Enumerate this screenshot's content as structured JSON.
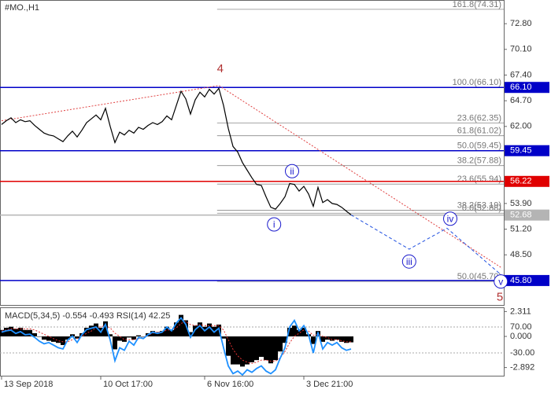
{
  "chart_data": [
    {
      "type": "line",
      "title": "#MO.,H1",
      "xlim": [
        -0.33,
        106.33
      ],
      "xticks": [
        {
          "value": 0,
          "label": "13 Sep 2018"
        },
        {
          "value": 21,
          "label": "10 Oct 17:00"
        },
        {
          "value": 43,
          "label": "6 Nov 16:00"
        },
        {
          "value": 64,
          "label": "3 Dec 21:00"
        }
      ],
      "ylim": [
        43.23,
        75.29
      ],
      "yticks": [
        {
          "value": 72.8,
          "label": "72.80"
        },
        {
          "value": 70.1,
          "label": "70.10"
        },
        {
          "value": 67.4,
          "label": "67.40"
        },
        {
          "value": 64.7,
          "label": "64.70"
        },
        {
          "value": 62,
          "label": "62.00"
        },
        {
          "value": 53.9,
          "label": "53.90"
        },
        {
          "value": 51.2,
          "label": "51.20"
        },
        {
          "value": 48.5,
          "label": "48.50"
        }
      ],
      "series": [
        {
          "color": "#000000",
          "values": [
            62.2,
            62.6,
            62.9,
            62.4,
            62.7,
            62.5,
            62.6,
            62.1,
            61.7,
            61.3,
            61.1,
            61.0,
            60.7,
            60.4,
            61.0,
            61.5,
            60.9,
            61.6,
            62.4,
            62.8,
            63.2,
            62.7,
            63.9,
            62.0,
            60.3,
            61.4,
            61.1,
            61.6,
            61.3,
            61.9,
            61.7,
            62.1,
            62.4,
            62.2,
            62.5,
            63.1,
            62.7,
            64.2,
            65.7,
            64.9,
            63.3,
            64.8,
            65.6,
            65.1,
            65.9,
            65.4,
            66.0,
            64.2,
            61.8,
            59.9,
            59.3,
            58.2,
            57.4,
            56.6,
            55.9,
            55.8,
            54.6,
            53.5,
            53.3,
            53.9,
            54.6,
            56.0,
            55.9,
            55.2,
            55.7,
            54.9,
            53.6,
            55.6,
            54.0,
            54.3,
            53.9,
            53.8,
            53.5,
            53.1,
            52.7
          ]
        }
      ],
      "levels": [
        {
          "value": 66.1,
          "label": "66.10",
          "color": "#0000c8"
        },
        {
          "value": 59.45,
          "label": "59.45",
          "color": "#0000c8"
        },
        {
          "value": 56.22,
          "label": "56.22",
          "color": "#e00000"
        },
        {
          "value": 52.68,
          "label": "52.68",
          "color": "#b4b4b4"
        },
        {
          "value": 45.8,
          "label": "45.80",
          "color": "#0000c8"
        }
      ],
      "fib": [
        {
          "value": 74.31,
          "label": "161.8(74.31)"
        },
        {
          "value": 66.1,
          "label": "100.0(66.10)"
        },
        {
          "value": 62.35,
          "label": "23.6(62.35)"
        },
        {
          "value": 61.02,
          "label": "61.8(61.02)"
        },
        {
          "value": 59.45,
          "label": "50.0(59.45)"
        },
        {
          "value": 57.88,
          "label": "38.2(57.88)"
        },
        {
          "value": 55.94,
          "label": "23.6(55.94)"
        },
        {
          "value": 53.19,
          "label": "38.2(53.19)"
        },
        {
          "value": 52.88,
          "label": "0.0(52.88)"
        },
        {
          "value": 45.7,
          "label": "50.0(45.70)"
        }
      ],
      "trendline": {
        "color": "#e04040",
        "x": [
          0,
          46,
          106
        ],
        "values": [
          62.6,
          66.3,
          47.1
        ]
      },
      "forecast": {
        "color": "#2050e0",
        "x": [
          74,
          86.3,
          94.3,
          106
        ],
        "values": [
          52.7,
          49.1,
          51.3,
          46.3
        ]
      },
      "waves": [
        {
          "label": "4",
          "x": 46.3,
          "y": 68.1,
          "color": "#b03030",
          "circled": false
        },
        {
          "label": "5",
          "x": 105.5,
          "y": 44.1,
          "color": "#b03030",
          "circled": false
        },
        {
          "label": "i",
          "x": 57.7,
          "y": 51.7,
          "color": "#1a1acc",
          "circled": true
        },
        {
          "label": "ii",
          "x": 61.5,
          "y": 57.3,
          "color": "#1a1acc",
          "circled": true
        },
        {
          "label": "iii",
          "x": 86.3,
          "y": 47.8,
          "color": "#1a1acc",
          "circled": true
        },
        {
          "label": "iv",
          "x": 95,
          "y": 52.3,
          "color": "#1a1acc",
          "circled": true
        },
        {
          "label": "v",
          "x": 105.7,
          "y": 45.7,
          "color": "#1a1acc",
          "circled": true
        }
      ]
    },
    {
      "type": "bar",
      "title": "MACD(5,34,5) -0.554 -0.493 RSI(14) 42.25",
      "xlim": [
        -0.33,
        106.33
      ],
      "ylim": [
        -3.65,
        2.63
      ],
      "yticks": [
        {
          "value": 2.311,
          "label": "2.311"
        },
        {
          "value": 0,
          "label": "0.000"
        },
        {
          "value": -2.892,
          "label": "-2.892"
        }
      ],
      "y2lim": [
        -117.9,
        142.7
      ],
      "y2ticks": [
        {
          "value": 70,
          "label": "70.00"
        },
        {
          "value": -30,
          "label": "-30.00"
        }
      ],
      "series": [
        {
          "type": "bar",
          "color": "#000000",
          "values": [
            0.6,
            0.8,
            0.9,
            0.7,
            0.8,
            0.6,
            0.6,
            0.3,
            0.0,
            -0.3,
            -0.4,
            -0.5,
            -0.6,
            -0.8,
            -0.3,
            0.2,
            -0.2,
            0.3,
            0.8,
            1.0,
            1.2,
            0.8,
            1.4,
            0.2,
            -1.2,
            -0.4,
            -0.5,
            -0.1,
            -0.3,
            0.1,
            0.0,
            0.3,
            0.5,
            0.4,
            0.5,
            0.9,
            0.6,
            1.3,
            2.0,
            1.5,
            0.4,
            1.0,
            1.3,
            0.9,
            1.2,
            0.9,
            1.1,
            -0.2,
            -1.8,
            -2.6,
            -2.6,
            -2.8,
            -2.6,
            -2.4,
            -2.2,
            -1.9,
            -2.2,
            -2.5,
            -2.2,
            -1.4,
            -0.6,
            0.8,
            1.0,
            0.6,
            0.8,
            0.2,
            -0.7,
            0.5,
            -0.5,
            -0.3,
            -0.4,
            -0.3,
            -0.5,
            -0.6,
            -0.55
          ]
        },
        {
          "type": "line",
          "color": "#e03030",
          "values": [
            0.5,
            0.6,
            0.7,
            0.7,
            0.7,
            0.7,
            0.7,
            0.6,
            0.4,
            0.2,
            0.0,
            -0.2,
            -0.4,
            -0.5,
            -0.5,
            -0.3,
            -0.2,
            0.0,
            0.3,
            0.5,
            0.8,
            0.9,
            1.0,
            0.8,
            0.3,
            0.0,
            -0.3,
            -0.3,
            -0.3,
            -0.2,
            -0.1,
            0.1,
            0.3,
            0.4,
            0.4,
            0.6,
            0.6,
            0.8,
            1.2,
            1.4,
            1.1,
            1.0,
            1.1,
            1.0,
            1.0,
            1.0,
            1.0,
            0.6,
            -0.3,
            -1.2,
            -1.8,
            -2.2,
            -2.4,
            -2.5,
            -2.4,
            -2.2,
            -2.2,
            -2.3,
            -2.3,
            -2.0,
            -1.4,
            -0.6,
            0.0,
            0.3,
            0.6,
            0.5,
            0.1,
            0.2,
            0.0,
            -0.1,
            -0.3,
            -0.3,
            -0.4,
            -0.5,
            -0.5
          ]
        },
        {
          "type": "line",
          "axis": "y2",
          "color": "#1e90ff",
          "values": [
            50,
            55,
            58,
            45,
            52,
            40,
            42,
            30,
            15,
            5,
            10,
            0,
            -10,
            -15,
            20,
            35,
            10,
            40,
            60,
            65,
            70,
            50,
            80,
            20,
            -60,
            -10,
            -20,
            15,
            0,
            30,
            25,
            40,
            50,
            45,
            50,
            70,
            55,
            85,
            105,
            80,
            30,
            60,
            75,
            55,
            70,
            50,
            65,
            -10,
            -80,
            -110,
            -100,
            -115,
            -95,
            -105,
            -90,
            -80,
            -100,
            -110,
            -95,
            -50,
            -10,
            70,
            95,
            55,
            75,
            40,
            -30,
            50,
            -15,
            10,
            0,
            10,
            -10,
            -20,
            -15
          ]
        }
      ]
    }
  ]
}
